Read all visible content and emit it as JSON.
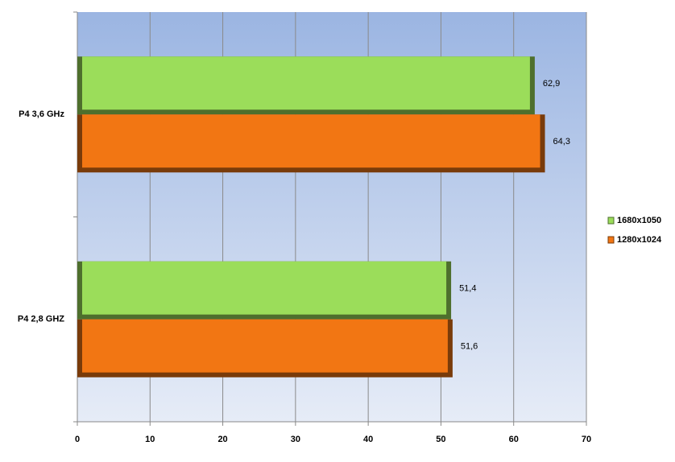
{
  "chart_data": {
    "type": "bar",
    "orientation": "horizontal",
    "categories": [
      "P4 3,6 GHz",
      "P4 2,8 GHZ"
    ],
    "series": [
      {
        "name": "1680x1050",
        "color": "#9bdd5a",
        "values": [
          62.9,
          51.4
        ],
        "value_labels": [
          "62,9",
          "51,4"
        ]
      },
      {
        "name": "1280x1024",
        "color": "#f27613",
        "values": [
          64.3,
          51.6
        ],
        "value_labels": [
          "64,3",
          "51,6"
        ]
      }
    ],
    "xlim": [
      0,
      70
    ],
    "xticks": [
      0,
      10,
      20,
      30,
      40,
      50,
      60,
      70
    ],
    "grid": true,
    "legend": "right"
  }
}
